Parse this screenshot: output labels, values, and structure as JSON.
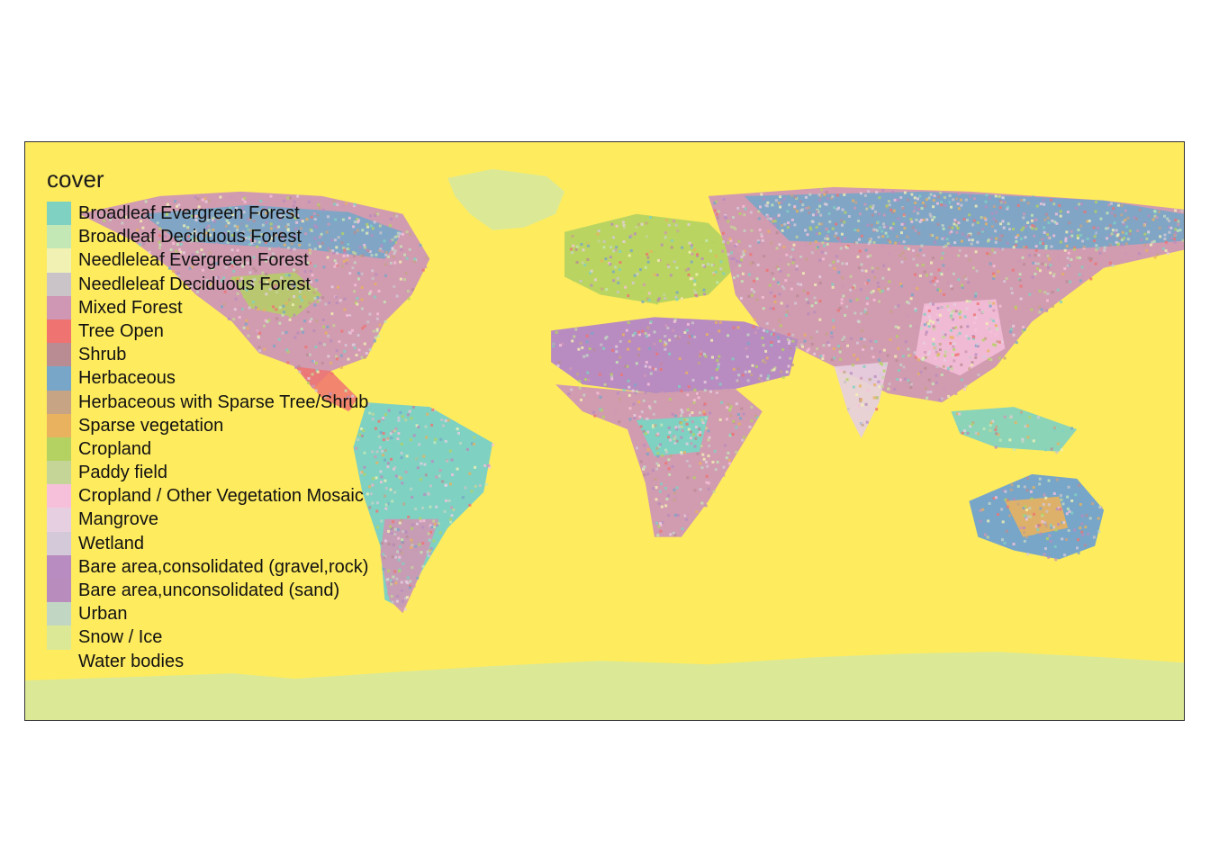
{
  "legend": {
    "title": "cover",
    "items": [
      {
        "label": "Broadleaf Evergreen Forest",
        "color": "#7fd1c2"
      },
      {
        "label": "Broadleaf Deciduous Forest",
        "color": "#c3e8b5"
      },
      {
        "label": "Needleleaf Evergreen Forest",
        "color": "#f2f1b4"
      },
      {
        "label": "Needleleaf Deciduous Forest",
        "color": "#cac4c8"
      },
      {
        "label": "Mixed Forest",
        "color": "#cf97b4"
      },
      {
        "label": "Tree Open",
        "color": "#ef7370"
      },
      {
        "label": "Shrub",
        "color": "#b98c93"
      },
      {
        "label": "Herbaceous",
        "color": "#78a6c8"
      },
      {
        "label": "Herbaceous with Sparse Tree/Shrub",
        "color": "#c6a484"
      },
      {
        "label": "Sparse vegetation",
        "color": "#e8b25f"
      },
      {
        "label": "Cropland",
        "color": "#b3d262"
      },
      {
        "label": "Paddy field",
        "color": "#c5d598"
      },
      {
        "label": "Cropland / Other Vegetation Mosaic",
        "color": "#f7c0da"
      },
      {
        "label": "Mangrove",
        "color": "#e6cfe0"
      },
      {
        "label": "Wetland",
        "color": "#d4c9d8"
      },
      {
        "label": "Bare area,consolidated (gravel,rock)",
        "color": "#b88cc0"
      },
      {
        "label": "Bare area,unconsolidated (sand)",
        "color": "#b88cbc"
      },
      {
        "label": "Urban",
        "color": "#c2d6c4"
      },
      {
        "label": "Snow / Ice",
        "color": "#dbe996"
      },
      {
        "label": "Water bodies",
        "color": "#feeb5e"
      }
    ]
  }
}
